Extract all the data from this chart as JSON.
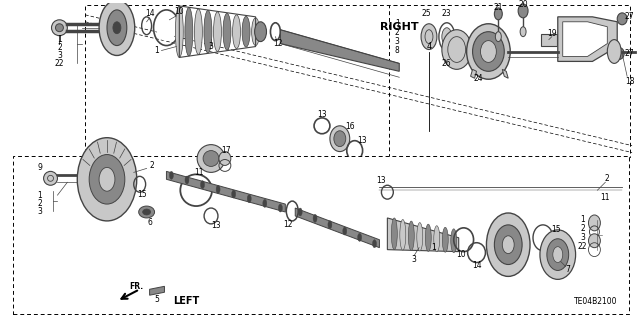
{
  "bg_color": "#ffffff",
  "lc": "#000000",
  "gray1": "#c8c8c8",
  "gray2": "#888888",
  "gray3": "#444444",
  "gray4": "#666666",
  "label_RIGHT": "RIGHT",
  "label_LEFT": "LEFT",
  "label_FR": "FR.",
  "label_code": "TE04B2100",
  "label_4": "4"
}
